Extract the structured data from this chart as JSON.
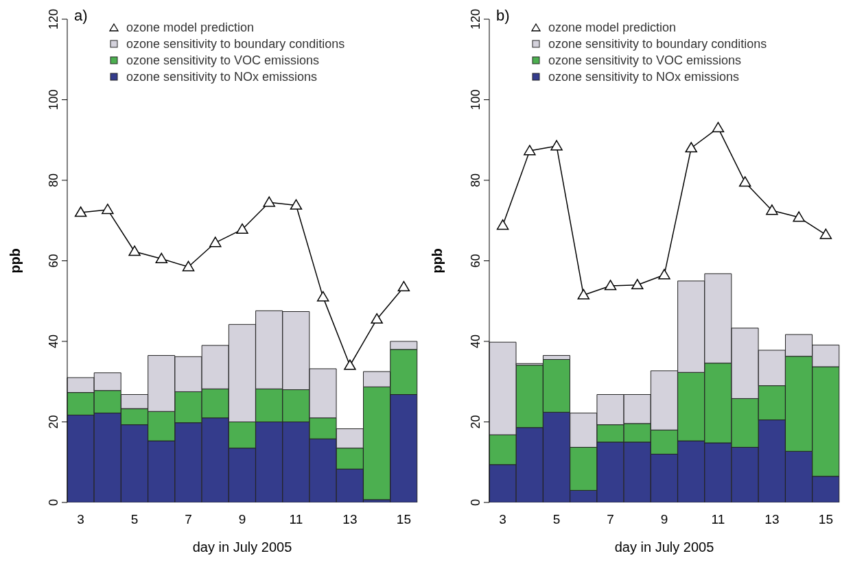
{
  "chart_data": [
    {
      "type": "bar",
      "title": "a)",
      "xlabel": "day in July 2005",
      "ylabel": "ppb",
      "stacked": true,
      "legend": "top left",
      "categories": [
        "3",
        null,
        "5",
        null,
        "7",
        null,
        "9",
        null,
        "11",
        null,
        "13",
        null,
        "15"
      ],
      "ylim": [
        0,
        120
      ],
      "yticks": [
        0,
        20,
        40,
        60,
        80,
        100,
        120
      ],
      "series": [
        {
          "name": "ozone sensitivity to NOx emissions",
          "color": "#343c8c",
          "values": [
            21.7,
            22.2,
            19.3,
            15.3,
            19.8,
            21,
            13.5,
            20,
            20,
            15.8,
            8.3,
            0.7,
            26.8
          ]
        },
        {
          "name": "ozone sensitivity to VOC emissions",
          "color": "#4caf50",
          "values": [
            5.6,
            5.6,
            4,
            7.3,
            7.7,
            7.2,
            6.5,
            8.2,
            8,
            5.2,
            5.2,
            28,
            11.2
          ]
        },
        {
          "name": "ozone sensitivity to boundary conditions",
          "color": "#d4d2dc",
          "values": [
            3.7,
            4.4,
            3.5,
            13.9,
            8.7,
            10.8,
            24.2,
            19.4,
            19.4,
            12.2,
            4.8,
            3.8,
            2
          ]
        },
        {
          "name": "ozone model prediction",
          "type": "line",
          "color": "#000000",
          "marker": "triangle",
          "values": [
            72,
            72.7,
            62.3,
            60.5,
            58.5,
            64.5,
            67.8,
            74.5,
            73.8,
            51,
            34,
            45.5,
            53.5
          ]
        }
      ]
    },
    {
      "type": "bar",
      "title": "b)",
      "xlabel": "day in July 2005",
      "ylabel": "ppb",
      "stacked": true,
      "legend": "top left",
      "categories": [
        "3",
        null,
        "5",
        null,
        "7",
        null,
        "9",
        null,
        "11",
        null,
        "13",
        null,
        "15"
      ],
      "ylim": [
        0,
        120
      ],
      "yticks": [
        0,
        20,
        40,
        60,
        80,
        100,
        120
      ],
      "series": [
        {
          "name": "ozone sensitivity to NOx emissions",
          "color": "#343c8c",
          "values": [
            9.4,
            18.6,
            22.4,
            3,
            15,
            15,
            12,
            15.3,
            14.8,
            13.7,
            20.5,
            12.7,
            6.5
          ]
        },
        {
          "name": "ozone sensitivity to VOC emissions",
          "color": "#4caf50",
          "values": [
            7.4,
            15.5,
            13.1,
            10.7,
            4.3,
            4.6,
            6,
            17,
            19.8,
            12.1,
            8.5,
            23.6,
            27.2
          ]
        },
        {
          "name": "ozone sensitivity to boundary conditions",
          "color": "#d4d2dc",
          "values": [
            23,
            0.4,
            1,
            8.5,
            7.5,
            7.2,
            14.7,
            22.7,
            22.2,
            17.5,
            8.8,
            5.4,
            5.4
          ]
        },
        {
          "name": "ozone model prediction",
          "type": "line",
          "color": "#000000",
          "marker": "triangle",
          "values": [
            68.8,
            87.3,
            88.5,
            51.5,
            53.8,
            54,
            56.5,
            88,
            93,
            79.5,
            72.5,
            70.8,
            66.5
          ]
        }
      ]
    }
  ]
}
